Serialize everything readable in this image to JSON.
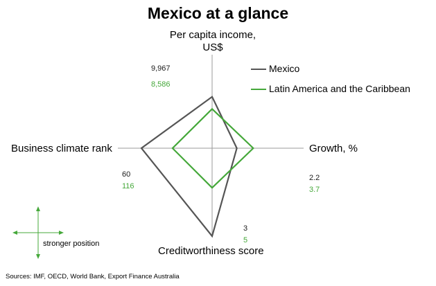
{
  "chart_data": {
    "type": "radar",
    "title": "Mexico at a glance",
    "axes": [
      {
        "key": "income",
        "label": "Per capita income, US$",
        "label_lines": [
          "Per capita income,",
          "US$"
        ],
        "direction": "up"
      },
      {
        "key": "growth",
        "label": "Growth, %",
        "direction": "right"
      },
      {
        "key": "credit",
        "label": "Creditworthiness score",
        "direction": "down"
      },
      {
        "key": "business",
        "label": "Business climate rank",
        "direction": "left"
      }
    ],
    "series": [
      {
        "name": "Mexico",
        "color": "#555555",
        "values": {
          "income": 9967,
          "growth": 2.2,
          "credit": 3,
          "business": 60
        },
        "value_labels": {
          "income": "9,967",
          "growth": "2.2",
          "credit": "3",
          "business": "60"
        },
        "normalized_radius": {
          "income": 0.55,
          "growth": 0.27,
          "credit": 1.0,
          "business": 0.75
        }
      },
      {
        "name": "Latin America and the Caribbean",
        "color": "#45a83a",
        "values": {
          "income": 8586,
          "growth": 3.7,
          "credit": 5,
          "business": 116
        },
        "value_labels": {
          "income": "8,586",
          "growth": "3.7",
          "credit": "5",
          "business": "116"
        },
        "normalized_radius": {
          "income": 0.42,
          "growth": 0.45,
          "credit": 0.45,
          "business": 0.42
        }
      }
    ],
    "legend_position": "top-right",
    "grid": false
  },
  "legend": {
    "mexico": "Mexico",
    "lac": "Latin America and the Caribbean"
  },
  "stronger_position": "stronger position",
  "source": "Sources: IMF, OECD, World Bank, Export Finance Australia"
}
